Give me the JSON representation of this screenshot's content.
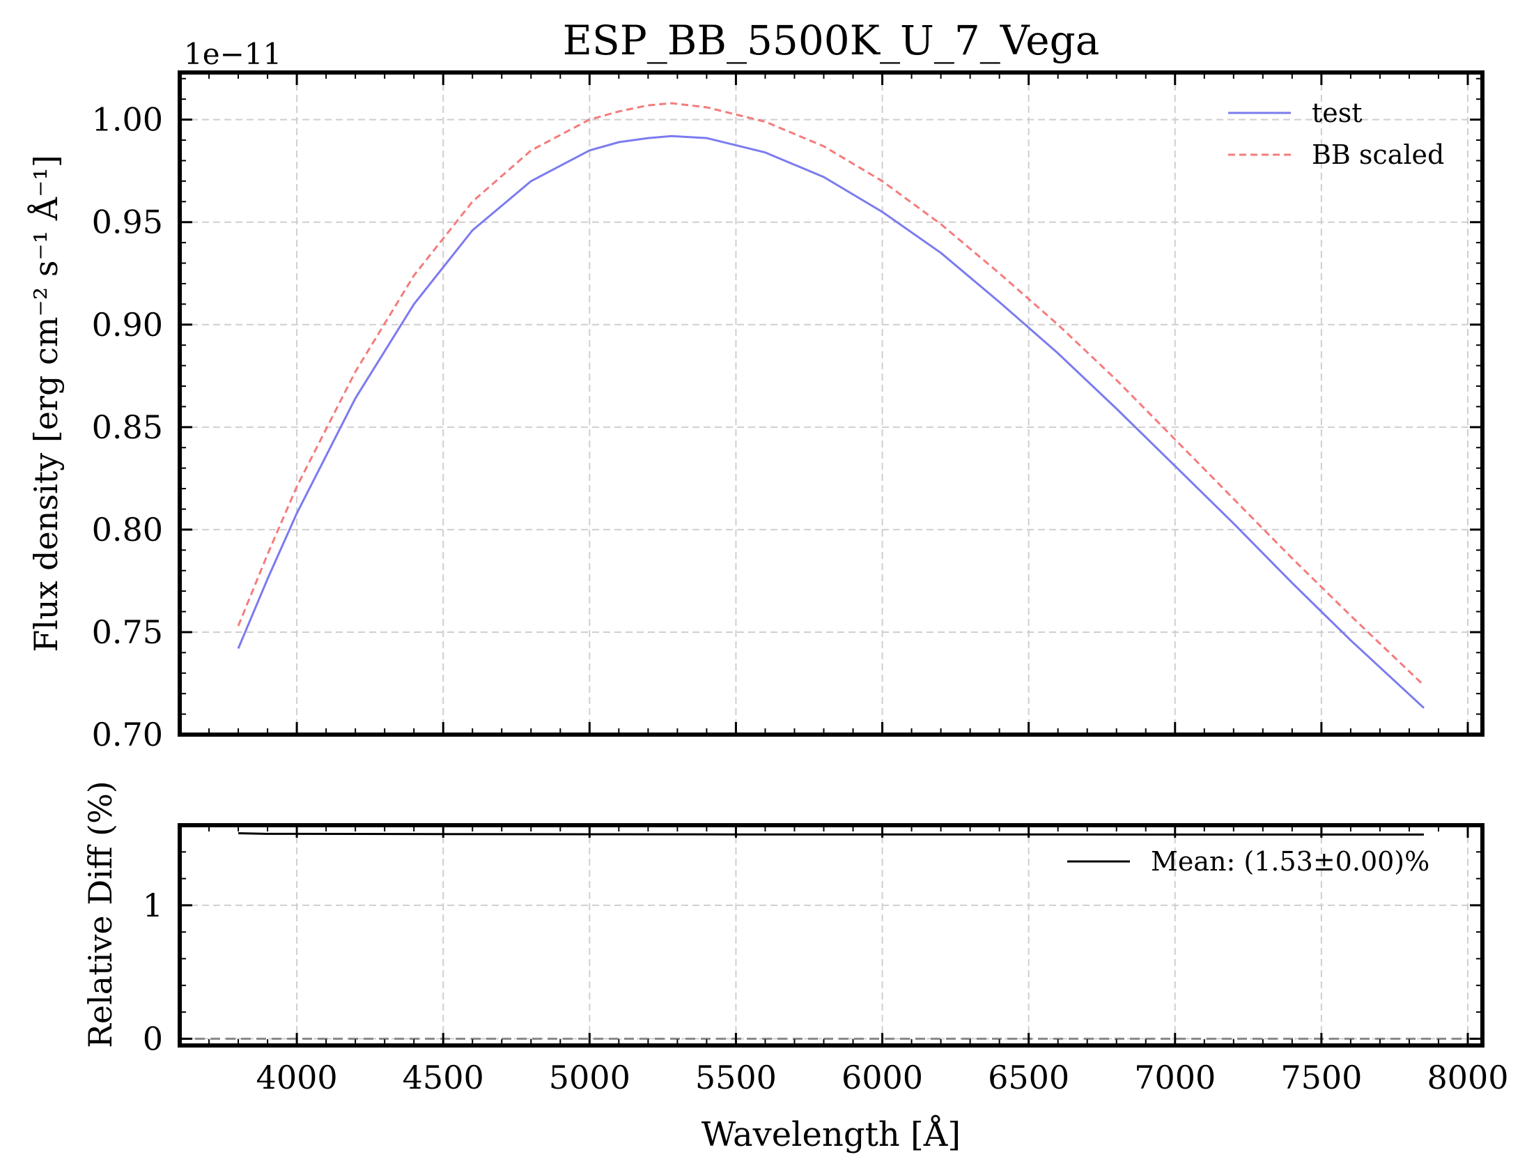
{
  "chart_data": [
    {
      "type": "line",
      "title": "ESP_BB_5500K_U_7_Vega",
      "xlabel": "",
      "ylabel": "Flux density [erg cm⁻² s⁻¹ Å⁻¹]",
      "offset_text": "1e−11",
      "xlim": [
        3600,
        8050
      ],
      "ylim": [
        0.7,
        1.023
      ],
      "xticks": [
        4000,
        4500,
        5000,
        5500,
        6000,
        6500,
        7000,
        7500,
        8000
      ],
      "yticks": [
        0.7,
        0.75,
        0.8,
        0.85,
        0.9,
        0.95,
        1.0
      ],
      "ytick_labels": [
        "0.70",
        "0.75",
        "0.80",
        "0.85",
        "0.90",
        "0.95",
        "1.00"
      ],
      "grid": true,
      "legend_position": "top-right",
      "series": [
        {
          "name": "test",
          "color": "#7b7bf0",
          "style": "solid",
          "x": [
            3800,
            3900,
            4000,
            4200,
            4400,
            4600,
            4800,
            5000,
            5100,
            5200,
            5280,
            5400,
            5600,
            5800,
            6000,
            6200,
            6400,
            6600,
            6800,
            7000,
            7200,
            7400,
            7600,
            7850
          ],
          "y": [
            0.742,
            0.776,
            0.808,
            0.864,
            0.91,
            0.946,
            0.97,
            0.985,
            0.989,
            0.991,
            0.992,
            0.991,
            0.984,
            0.972,
            0.955,
            0.935,
            0.911,
            0.886,
            0.859,
            0.831,
            0.803,
            0.774,
            0.746,
            0.713
          ]
        },
        {
          "name": "BB scaled",
          "color": "#f47c7c",
          "style": "dashed",
          "x": [
            3800,
            3900,
            4000,
            4200,
            4400,
            4600,
            4800,
            5000,
            5100,
            5200,
            5280,
            5400,
            5600,
            5800,
            6000,
            6200,
            6400,
            6600,
            6800,
            7000,
            7200,
            7400,
            7600,
            7850
          ],
          "y": [
            0.753,
            0.788,
            0.821,
            0.877,
            0.924,
            0.96,
            0.985,
            1.0,
            1.004,
            1.007,
            1.008,
            1.006,
            0.999,
            0.987,
            0.97,
            0.949,
            0.925,
            0.9,
            0.873,
            0.844,
            0.815,
            0.786,
            0.758,
            0.724
          ]
        }
      ]
    },
    {
      "type": "line",
      "title": "",
      "xlabel": "Wavelength [Å]",
      "ylabel": "Relative Diff (%)",
      "xlim": [
        3600,
        8050
      ],
      "ylim": [
        -0.05,
        1.6
      ],
      "xticks": [
        4000,
        4500,
        5000,
        5500,
        6000,
        6500,
        7000,
        7500,
        8000
      ],
      "yticks": [
        0,
        1
      ],
      "ytick_labels": [
        "0",
        "1"
      ],
      "grid": true,
      "legend_position": "top-right",
      "reference_line": {
        "y": 0,
        "color": "#888888",
        "style": "dashed"
      },
      "series": [
        {
          "name": "Mean: (1.53±0.00)%",
          "color": "#000000",
          "style": "solid",
          "x": [
            3800,
            3900,
            4000,
            4500,
            5000,
            5500,
            6000,
            6500,
            7000,
            7500,
            7850
          ],
          "y": [
            1.54,
            1.535,
            1.535,
            1.533,
            1.532,
            1.531,
            1.531,
            1.531,
            1.53,
            1.53,
            1.53
          ]
        }
      ]
    }
  ]
}
